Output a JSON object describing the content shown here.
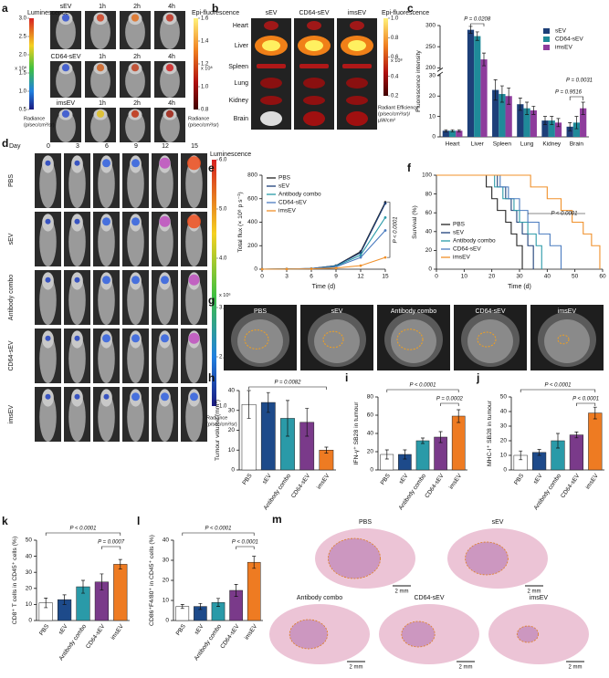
{
  "panels": {
    "a": {
      "letter": "a",
      "groups": [
        {
          "label": "sEV",
          "times": [
            "1h",
            "2h",
            "4h"
          ]
        },
        {
          "label": "CD64-sEV",
          "times": [
            "1h",
            "2h",
            "4h"
          ]
        },
        {
          "label": "imsEV",
          "times": [
            "1h",
            "2h",
            "4h"
          ]
        }
      ],
      "scale_left": {
        "title": "Luminescence",
        "ticks": [
          "3.0",
          "2.5",
          "2.0",
          "1.5",
          "1.0",
          "0.5"
        ],
        "unit": "x 10⁸",
        "footer": [
          "Radiance",
          "(p/sec/cm²/sr)"
        ]
      },
      "scale_right": {
        "title": "Epi-fluorescence",
        "ticks": [
          "1.6",
          "1.4",
          "1.2",
          "1.0",
          "0.8"
        ],
        "unit": "x 10⁸",
        "footer": [
          "Radiance",
          "(p/sec/cm²/sr)"
        ]
      }
    },
    "b": {
      "letter": "b",
      "columns": [
        "sEV",
        "CD64-sEV",
        "imsEV"
      ],
      "rows": [
        "Heart",
        "Liver",
        "Spleen",
        "Lung",
        "Kidney",
        "Brain"
      ],
      "scale": {
        "title": "Epi-fluorescence",
        "ticks": [
          "1.0",
          "0.8",
          "0.6",
          "0.4",
          "0.2"
        ],
        "unit": "x 10⁸",
        "footer": [
          "Radiant Efficiency",
          "(p/sec/cm²/sr)/",
          "µW/cm²"
        ]
      }
    },
    "d": {
      "letter": "d",
      "axis": "Day",
      "days": [
        "0",
        "3",
        "6",
        "9",
        "12",
        "15"
      ],
      "rows": [
        "PBS",
        "sEV",
        "Antibody combo",
        "CD64-sEV",
        "imsEV"
      ],
      "scale": {
        "title": "Luminescence",
        "ticks": [
          "6.0",
          "5.0",
          "4.0",
          "3.0",
          "2.0",
          "1.0"
        ],
        "unit": "x 10⁶",
        "footer": [
          "Radiance",
          "(p/sec/cm²/sr)"
        ]
      }
    },
    "g": {
      "letter": "g",
      "labels": [
        "PBS",
        "sEV",
        "Antibody combo",
        "CD64-sEV",
        "imsEV"
      ]
    },
    "m": {
      "letter": "m",
      "labels": [
        "PBS",
        "sEV",
        "Antibody combo",
        "CD64-sEV",
        "imsEV"
      ],
      "scale_bar": "2 mm"
    }
  },
  "chart_data": [
    {
      "panel": "c",
      "type": "grouped_bar",
      "ylabel": "Fluorescence intensity",
      "categories": [
        "Heart",
        "Liver",
        "Spleen",
        "Lung",
        "Kidney",
        "Brain"
      ],
      "series": [
        {
          "name": "sEV",
          "color": "#1d3f78",
          "values": [
            3,
            290,
            23,
            16,
            8,
            5
          ],
          "errors": [
            0.5,
            8,
            5,
            3,
            2,
            2
          ]
        },
        {
          "name": "CD64-sEV",
          "color": "#1f8a99",
          "values": [
            3,
            275,
            21,
            14,
            8,
            7
          ],
          "errors": [
            0.5,
            10,
            4,
            3,
            2,
            3
          ]
        },
        {
          "name": "imsEV",
          "color": "#8e3c9c",
          "values": [
            3,
            220,
            20,
            13,
            7,
            14
          ],
          "errors": [
            0.5,
            15,
            4,
            2,
            2,
            3
          ]
        }
      ],
      "ylim": [
        0,
        300
      ],
      "axis_break": [
        30,
        200
      ],
      "yticks": [
        0,
        10,
        20,
        30,
        200,
        250,
        300
      ],
      "legend": "upper right",
      "annotations": [
        "P = 0.0208",
        "P = 0.0031",
        "P = 0.9516"
      ]
    },
    {
      "panel": "e",
      "type": "line",
      "xlabel": "Time (d)",
      "ylabel": "Total flux (× 10⁸ p s⁻¹)",
      "x": [
        0,
        3,
        6,
        9,
        12,
        15
      ],
      "series": [
        {
          "name": "PBS",
          "color": "#222222",
          "values": [
            0,
            2,
            5,
            30,
            150,
            570
          ]
        },
        {
          "name": "sEV",
          "color": "#1d3f78",
          "values": [
            0,
            2,
            5,
            30,
            140,
            560
          ]
        },
        {
          "name": "Antibody combo",
          "color": "#2a9aa8",
          "values": [
            0,
            2,
            4,
            25,
            120,
            440
          ]
        },
        {
          "name": "CD64-sEV",
          "color": "#4a7bbf",
          "values": [
            0,
            2,
            4,
            20,
            100,
            330
          ]
        },
        {
          "name": "imsEV",
          "color": "#f0902a",
          "values": [
            0,
            1,
            3,
            10,
            30,
            100
          ]
        }
      ],
      "xlim": [
        0,
        15
      ],
      "xticks": [
        0,
        3,
        6,
        9,
        12,
        15
      ],
      "ylim": [
        0,
        800
      ],
      "yticks": [
        0,
        200,
        400,
        600,
        800
      ],
      "legend": "upper left",
      "annotations": [
        "P < 0.0001"
      ]
    },
    {
      "panel": "f",
      "type": "step",
      "xlabel": "Time (d)",
      "ylabel": "Survival (%)",
      "series": [
        {
          "name": "PBS",
          "color": "#222222",
          "x": [
            0,
            18,
            20,
            22,
            25,
            27,
            29,
            31
          ],
          "values": [
            100,
            87.5,
            75,
            62.5,
            50,
            37.5,
            25,
            0
          ]
        },
        {
          "name": "sEV",
          "color": "#1d3f78",
          "x": [
            0,
            22,
            25,
            27,
            29,
            31,
            33,
            35
          ],
          "values": [
            100,
            87.5,
            75,
            62.5,
            50,
            37.5,
            25,
            0
          ]
        },
        {
          "name": "Antibody combo",
          "color": "#2a9aa8",
          "x": [
            0,
            21,
            24,
            28,
            30,
            33,
            36,
            38
          ],
          "values": [
            100,
            87.5,
            75,
            62.5,
            50,
            37.5,
            25,
            0
          ]
        },
        {
          "name": "CD64-sEV",
          "color": "#4a7bbf",
          "x": [
            0,
            23,
            26,
            30,
            33,
            37,
            41,
            45
          ],
          "values": [
            100,
            87.5,
            75,
            62.5,
            50,
            37.5,
            25,
            0
          ]
        },
        {
          "name": "imsEV",
          "color": "#f0902a",
          "x": [
            0,
            34,
            40,
            45,
            49,
            53,
            56,
            59
          ],
          "values": [
            100,
            87.5,
            75,
            62.5,
            50,
            37.5,
            25,
            0
          ]
        }
      ],
      "xlim": [
        0,
        60
      ],
      "xticks": [
        0,
        10,
        20,
        30,
        40,
        50,
        60
      ],
      "ylim": [
        0,
        100
      ],
      "yticks": [
        0,
        20,
        40,
        60,
        80,
        100
      ],
      "legend": "lower left",
      "annotations": [
        "P < 0.0001"
      ]
    },
    {
      "panel": "h",
      "type": "bar",
      "ylabel": "Tumour volume (mm³)",
      "categories": [
        "PBS",
        "sEV",
        "Antibody combo",
        "CD64-sEV",
        "imsEV"
      ],
      "values": [
        33,
        34,
        26,
        24,
        10
      ],
      "errors": [
        7,
        5,
        9,
        7,
        1.5
      ],
      "colors": [
        "#ffffff",
        "#1d4a8a",
        "#2a9aa8",
        "#7a3a8a",
        "#ee7b22"
      ],
      "ylim": [
        0,
        40
      ],
      "yticks": [
        0,
        10,
        20,
        30,
        40
      ],
      "annotations": [
        "P = 0.0082"
      ]
    },
    {
      "panel": "i",
      "type": "bar",
      "ylabel": "IFN-γ⁺ SB28 in tumour",
      "categories": [
        "PBS",
        "sEV",
        "Antibody combo",
        "CD64-sEV",
        "imsEV"
      ],
      "values": [
        17,
        17,
        32,
        36,
        59
      ],
      "errors": [
        5,
        5,
        3,
        6,
        7
      ],
      "colors": [
        "#ffffff",
        "#1d4a8a",
        "#2a9aa8",
        "#7a3a8a",
        "#ee7b22"
      ],
      "ylim": [
        0,
        80
      ],
      "yticks": [
        0,
        20,
        40,
        60,
        80
      ],
      "annotations": [
        "P < 0.0001",
        "P = 0.0002"
      ]
    },
    {
      "panel": "j",
      "type": "bar",
      "ylabel": "MHC-I⁺ SB28 in tumour",
      "categories": [
        "PBS",
        "sEV",
        "Antibody combo",
        "CD64-sEV",
        "imsEV"
      ],
      "values": [
        10,
        12,
        20,
        24,
        39
      ],
      "errors": [
        3,
        2,
        5,
        2,
        4
      ],
      "colors": [
        "#ffffff",
        "#1d4a8a",
        "#2a9aa8",
        "#7a3a8a",
        "#ee7b22"
      ],
      "ylim": [
        0,
        50
      ],
      "yticks": [
        0,
        10,
        20,
        30,
        40,
        50
      ],
      "annotations": [
        "P < 0.0001",
        "P < 0.0001"
      ]
    },
    {
      "panel": "k",
      "type": "bar",
      "ylabel": "CD8⁺ T cells in CD45⁺ cells (%)",
      "categories": [
        "PBS",
        "sEV",
        "Antibody combo",
        "CD64-sEV",
        "imsEV"
      ],
      "values": [
        11,
        13,
        21,
        24,
        35
      ],
      "errors": [
        3,
        3,
        4,
        5,
        3
      ],
      "colors": [
        "#ffffff",
        "#1d4a8a",
        "#2a9aa8",
        "#7a3a8a",
        "#ee7b22"
      ],
      "ylim": [
        0,
        50
      ],
      "yticks": [
        0,
        10,
        20,
        30,
        40,
        50
      ],
      "annotations": [
        "P < 0.0001",
        "P = 0.0007"
      ]
    },
    {
      "panel": "l",
      "type": "bar",
      "ylabel": "CD86⁺F4/80⁺ in CD45⁺ cells (%)",
      "categories": [
        "PBS",
        "sEV",
        "Antibody combo",
        "CD64-sEV",
        "imsEV"
      ],
      "values": [
        7,
        7,
        9,
        15,
        29
      ],
      "errors": [
        1,
        1.5,
        2,
        3,
        3
      ],
      "colors": [
        "#ffffff",
        "#1d4a8a",
        "#2a9aa8",
        "#7a3a8a",
        "#ee7b22"
      ],
      "ylim": [
        0,
        40
      ],
      "yticks": [
        0,
        10,
        20,
        30,
        40
      ],
      "annotations": [
        "P < 0.0001",
        "P < 0.0001"
      ]
    }
  ]
}
